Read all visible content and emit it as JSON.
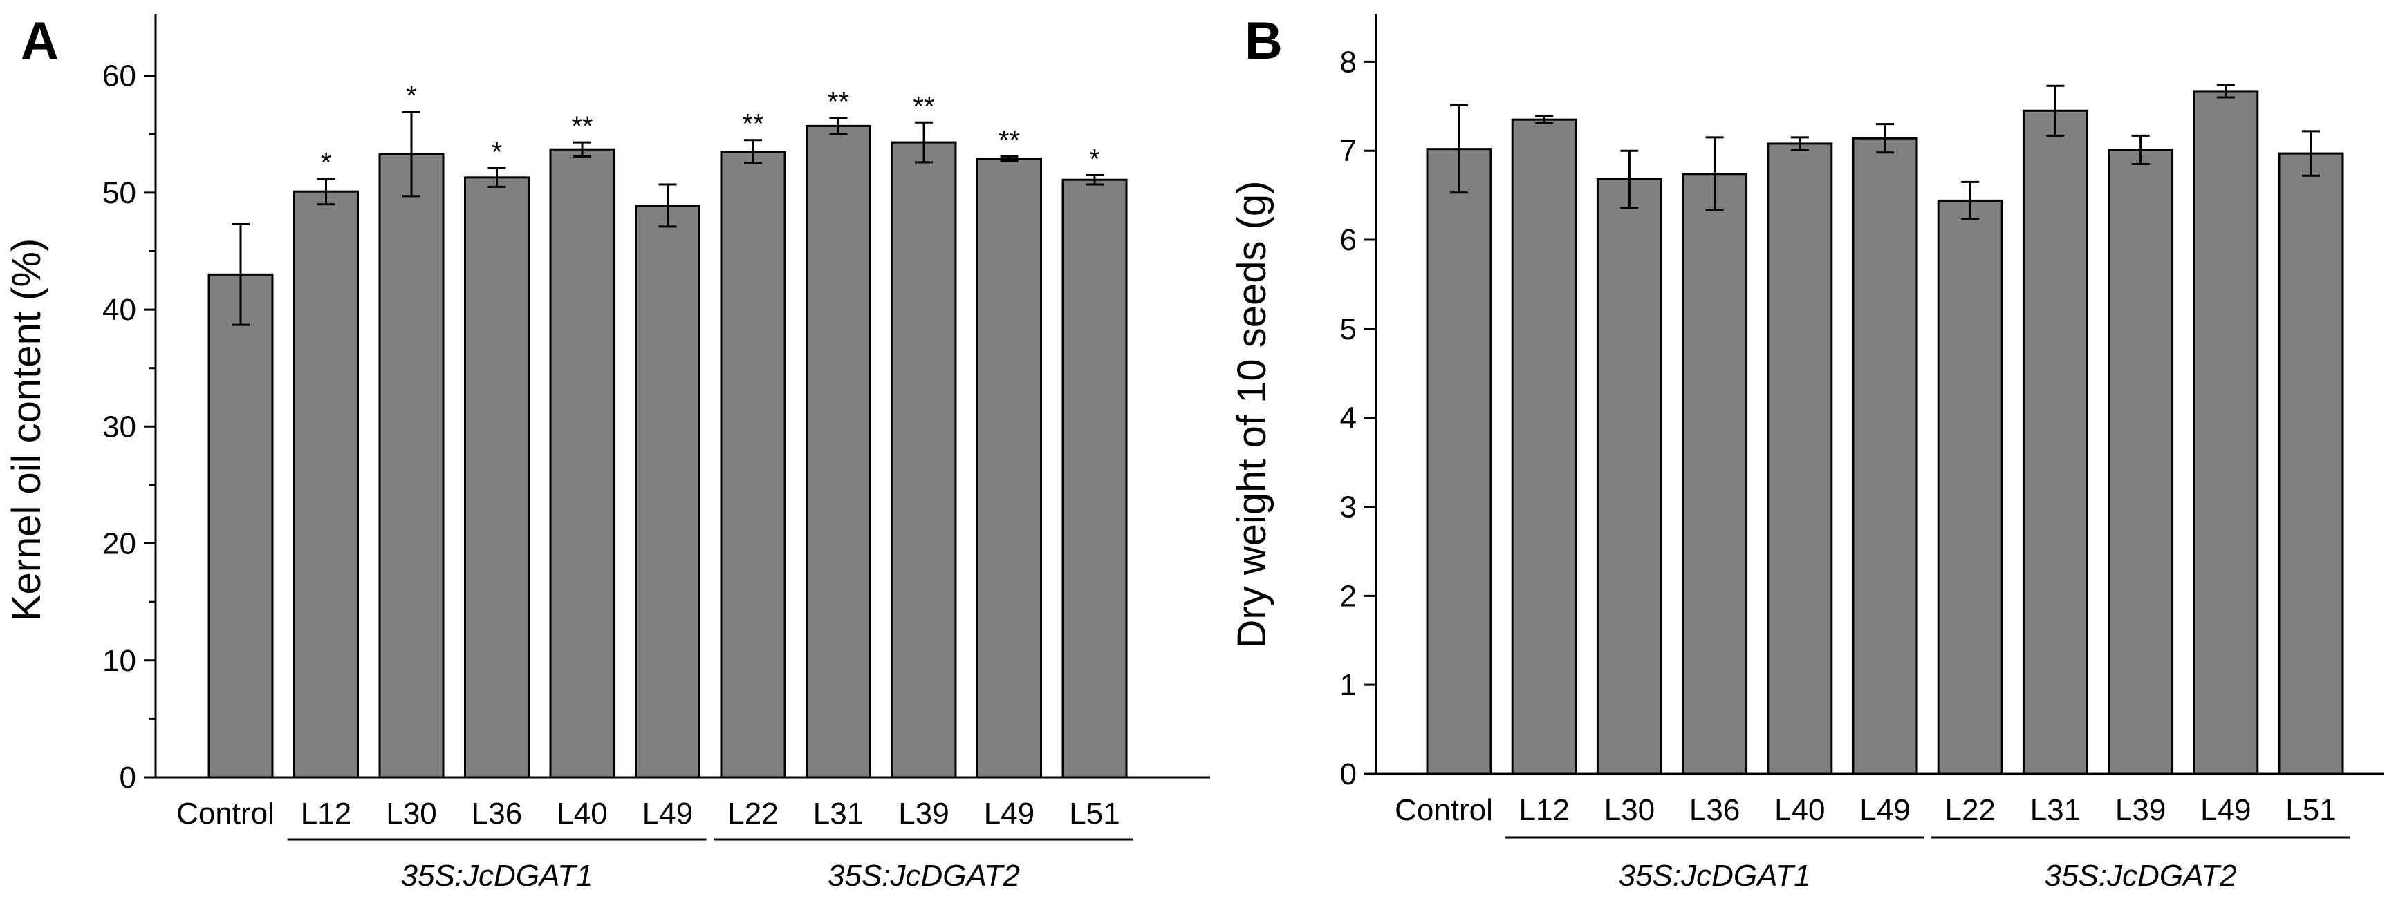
{
  "colors": {
    "bar": "#808080",
    "stroke": "#000000",
    "background": "#ffffff"
  },
  "chart_data": [
    {
      "type": "bar",
      "panel": "A",
      "title": "",
      "xlabel": "",
      "ylabel": "Kernel oil content (%)",
      "ylim": [
        0,
        65
      ],
      "yticks": [
        0,
        10,
        20,
        30,
        40,
        50,
        60
      ],
      "ytick_labels": [
        "0",
        "10",
        "20",
        "30",
        "40",
        "50",
        "60"
      ],
      "categories": [
        "Control",
        "L12",
        "L30",
        "L36",
        "L40",
        "L49",
        "L22",
        "L31",
        "L39",
        "L49",
        "L51"
      ],
      "values": [
        43.0,
        50.1,
        53.3,
        51.3,
        53.7,
        48.9,
        53.5,
        55.7,
        54.3,
        52.9,
        51.1
      ],
      "errors": [
        4.3,
        1.1,
        3.6,
        0.8,
        0.6,
        1.8,
        1.0,
        0.7,
        1.7,
        0.2,
        0.4
      ],
      "significance": [
        "",
        "*",
        "*",
        "*",
        "**",
        "",
        "**",
        "**",
        "**",
        "**",
        "*"
      ],
      "groups": [
        {
          "label": "35S:JcDGAT1",
          "start": 1,
          "end": 5
        },
        {
          "label": "35S:JcDGAT2",
          "start": 6,
          "end": 10
        }
      ]
    },
    {
      "type": "bar",
      "panel": "B",
      "title": "",
      "xlabel": "",
      "ylabel": "Dry weight of 10 seeds (g)",
      "ylim": [
        0,
        8.5
      ],
      "yticks": [
        0,
        1,
        2,
        3,
        4,
        5,
        6,
        7,
        8
      ],
      "ytick_labels": [
        "0",
        "1",
        "2",
        "3",
        "4",
        "5",
        "6",
        "7",
        "8"
      ],
      "categories": [
        "Control",
        "L12",
        "L30",
        "L36",
        "L40",
        "L49",
        "L22",
        "L31",
        "L39",
        "L49",
        "L51"
      ],
      "values": [
        7.02,
        7.35,
        6.68,
        6.74,
        7.08,
        7.14,
        6.44,
        7.45,
        7.01,
        7.67,
        6.97
      ],
      "errors": [
        0.49,
        0.04,
        0.32,
        0.41,
        0.07,
        0.16,
        0.21,
        0.28,
        0.16,
        0.07,
        0.25
      ],
      "significance": [
        "",
        "",
        "",
        "",
        "",
        "",
        "",
        "",
        "",
        "",
        ""
      ],
      "groups": [
        {
          "label": "35S:JcDGAT1",
          "start": 1,
          "end": 5
        },
        {
          "label": "35S:JcDGAT2",
          "start": 6,
          "end": 10
        }
      ]
    }
  ]
}
